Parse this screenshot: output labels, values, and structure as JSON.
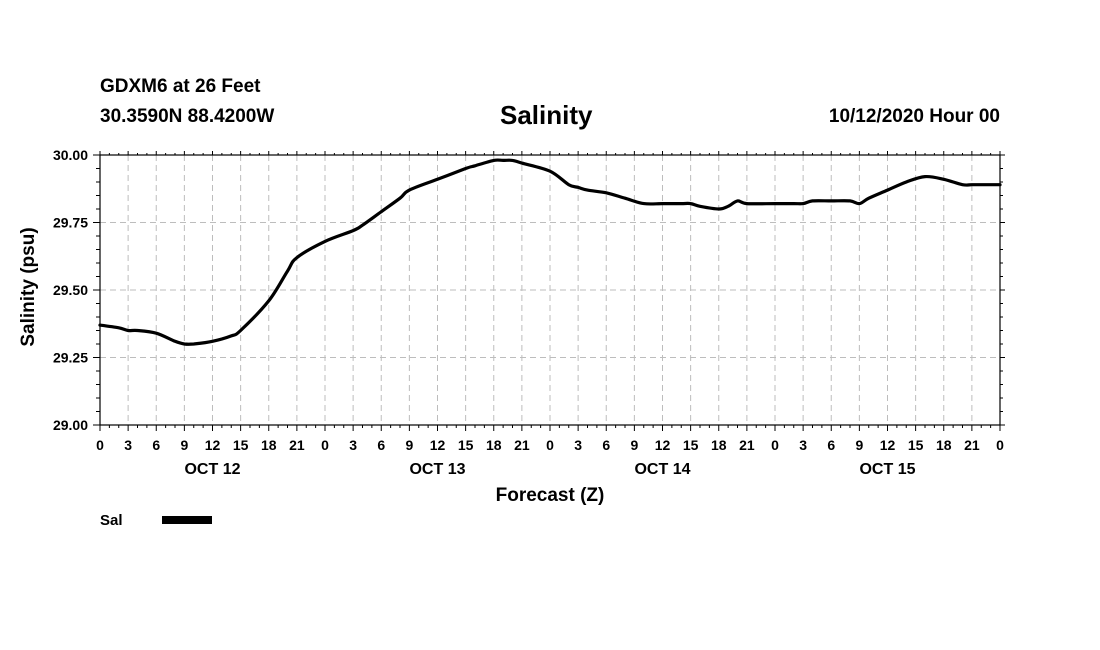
{
  "header": {
    "station": "GDXM6 at 26 Feet",
    "coords": "30.3590N 88.4200W",
    "title": "Salinity",
    "datetime": "10/12/2020 Hour 00"
  },
  "chart_data": {
    "type": "line",
    "title": "Salinity",
    "xlabel": "Forecast (Z)",
    "ylabel": "Salinity (psu)",
    "ylim": [
      29.0,
      30.0
    ],
    "yticks": [
      29.0,
      29.25,
      29.5,
      29.75,
      30.0
    ],
    "ytick_labels": [
      "29.00",
      "29.25",
      "29.50",
      "29.75",
      "30.00"
    ],
    "xlim_hours": [
      0,
      96
    ],
    "xticks_hours": [
      0,
      3,
      6,
      9,
      12,
      15,
      18,
      21,
      24,
      27,
      30,
      33,
      36,
      39,
      42,
      45,
      48,
      51,
      54,
      57,
      60,
      63,
      66,
      69,
      72,
      75,
      78,
      81,
      84,
      87,
      90,
      93,
      96
    ],
    "xtick_labels": [
      "0",
      "3",
      "6",
      "9",
      "12",
      "15",
      "18",
      "21",
      "0",
      "3",
      "6",
      "9",
      "12",
      "15",
      "18",
      "21",
      "0",
      "3",
      "6",
      "9",
      "12",
      "15",
      "18",
      "21",
      "0",
      "3",
      "6",
      "9",
      "12",
      "15",
      "18",
      "21",
      "0"
    ],
    "day_labels": [
      {
        "label": "OCT 12",
        "hour": 12
      },
      {
        "label": "OCT 13",
        "hour": 36
      },
      {
        "label": "OCT 14",
        "hour": 60
      },
      {
        "label": "OCT 15",
        "hour": 84
      }
    ],
    "grid": true,
    "legend": {
      "position": "bottom-left",
      "entries": [
        {
          "name": "Sal"
        }
      ]
    },
    "series": [
      {
        "name": "Sal",
        "color": "#000000",
        "x": [
          0,
          2,
          3,
          4,
          6,
          8,
          9,
          10,
          12,
          14,
          15,
          18,
          20,
          21,
          24,
          27,
          28,
          30,
          32,
          33,
          36,
          39,
          40,
          42,
          43,
          44,
          45,
          48,
          50,
          51,
          52,
          54,
          56,
          58,
          60,
          62,
          63,
          64,
          66,
          67,
          68,
          69,
          72,
          74,
          75,
          76,
          78,
          80,
          81,
          82,
          84,
          86,
          88,
          90,
          92,
          93,
          94,
          96
        ],
        "values": [
          29.37,
          29.36,
          29.35,
          29.35,
          29.34,
          29.31,
          29.3,
          29.3,
          29.31,
          29.33,
          29.35,
          29.46,
          29.57,
          29.62,
          29.68,
          29.72,
          29.74,
          29.79,
          29.84,
          29.87,
          29.91,
          29.95,
          29.96,
          29.98,
          29.98,
          29.98,
          29.97,
          29.94,
          29.89,
          29.88,
          29.87,
          29.86,
          29.84,
          29.82,
          29.82,
          29.82,
          29.82,
          29.81,
          29.8,
          29.81,
          29.83,
          29.82,
          29.82,
          29.82,
          29.82,
          29.83,
          29.83,
          29.83,
          29.82,
          29.84,
          29.87,
          29.9,
          29.92,
          29.91,
          29.89,
          29.89,
          29.89,
          29.89
        ]
      }
    ]
  }
}
